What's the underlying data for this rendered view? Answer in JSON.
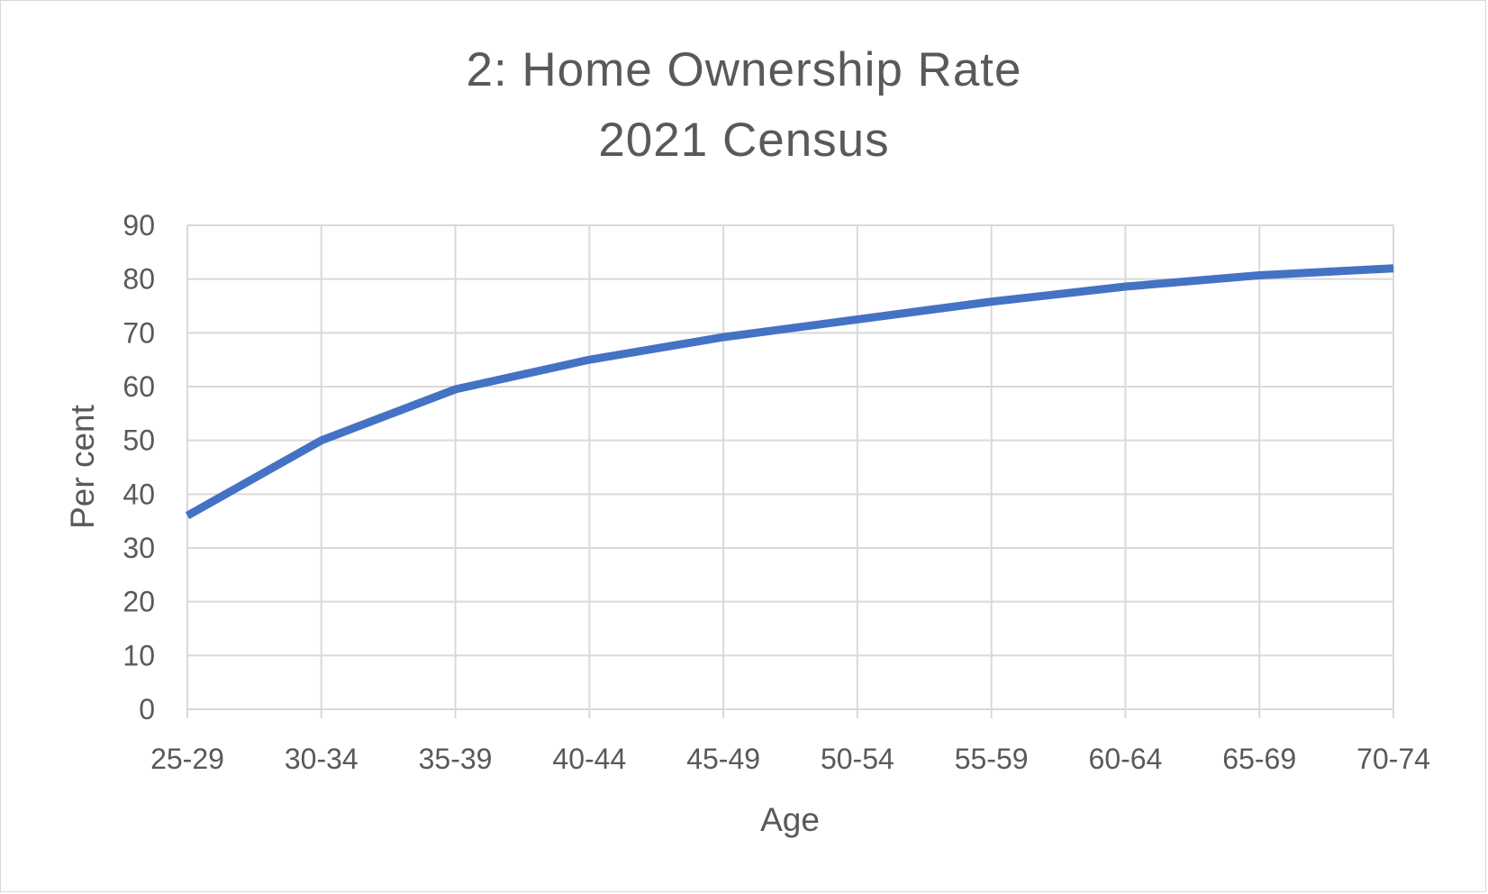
{
  "chart_data": {
    "type": "line",
    "title": "2:  Home Ownership Rate",
    "subtitle": "2021 Census",
    "xlabel": "Age",
    "ylabel": "Per cent",
    "categories": [
      "25-29",
      "30-34",
      "35-39",
      "40-44",
      "45-49",
      "50-54",
      "55-59",
      "60-64",
      "65-69",
      "70-74"
    ],
    "series": [
      {
        "values": [
          36,
          50,
          59.5,
          65,
          69.2,
          72.5,
          75.8,
          78.6,
          80.7,
          82
        ],
        "color": "#4472c4"
      }
    ],
    "ylim": [
      0,
      90
    ],
    "yticks": [
      0,
      10,
      20,
      30,
      40,
      50,
      60,
      70,
      80,
      90
    ],
    "grid": true,
    "legend": "none"
  }
}
